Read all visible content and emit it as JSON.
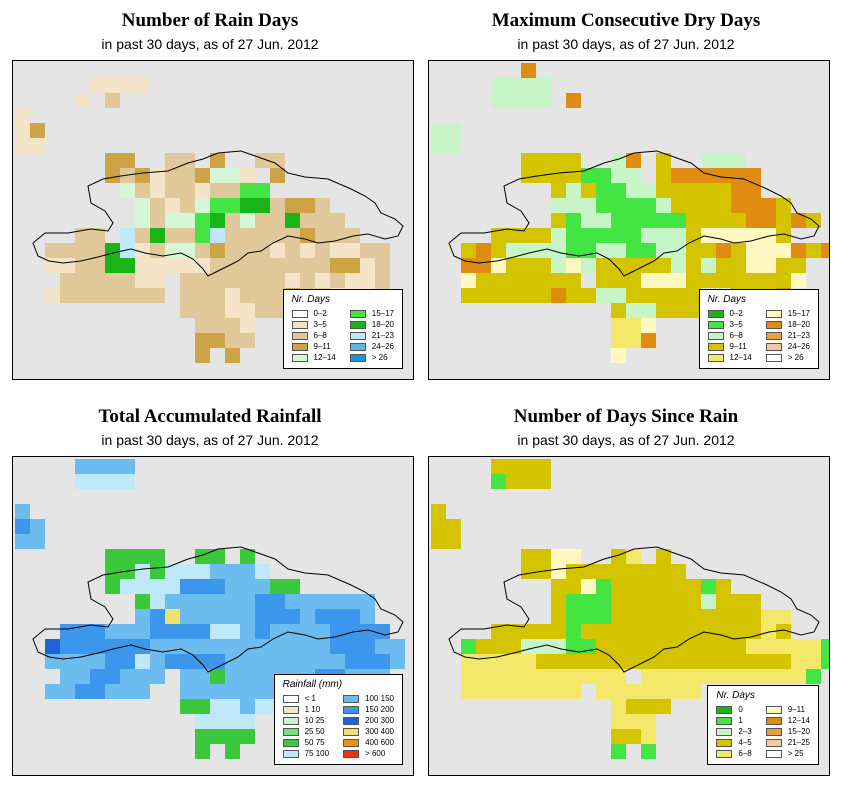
{
  "panels": [
    {
      "id": "rain-days",
      "title": "Number of Rain Days",
      "subtitle": "in past 30 days, as of  27 Jun. 2012",
      "legend_title": "Nr. Days",
      "legend": [
        {
          "label": "0–2",
          "color": "#ffffff"
        },
        {
          "label": "3–5",
          "color": "#f4e4c8"
        },
        {
          "label": "6–8",
          "color": "#e0c89a"
        },
        {
          "label": "9–11",
          "color": "#cca445"
        },
        {
          "label": "12–14",
          "color": "#d6f7d6"
        },
        {
          "label": "15–17",
          "color": "#44e444"
        },
        {
          "label": "18–20",
          "color": "#18b418"
        },
        {
          "label": "21–23",
          "color": "#bfe8f8"
        },
        {
          "label": "24–26",
          "color": "#5cb8ec"
        },
        {
          "label": "> 26",
          "color": "#1e90d8"
        }
      ],
      "grid": [
        "...........................",
        ".....1111..................",
        "....1.2....................",
        "1..........................",
        "13.........................",
        "11.........................",
        "......33..22.3..22.........",
        "......3231223441.3.........",
        ".......4212212255..........",
        "........4212455662332......",
        "........42445624226222.....",
        "....22.7262257222223222....",
        "..22226712442322212121122..",
        "..11226611111222222223312..",
        "...2222211.22222221212112..",
        "..12222222.22212223221112..",
        "...........2221122.........",
        "............2221...........",
        "............3322...........",
        "............3.3............",
        "..........................."
      ]
    },
    {
      "id": "max-dry-days",
      "title": "Maximum Consecutive Dry Days",
      "subtitle": "in past 30 days, as of  27 Jun. 2012",
      "legend_title": "Nr. Days",
      "legend": [
        {
          "label": "0–2",
          "color": "#18b418"
        },
        {
          "label": "3–5",
          "color": "#44e444"
        },
        {
          "label": "6–8",
          "color": "#c8f5c8"
        },
        {
          "label": "9–11",
          "color": "#d4c400"
        },
        {
          "label": "12–14",
          "color": "#f4e86a"
        },
        {
          "label": "15–17",
          "color": "#fff8c0"
        },
        {
          "label": "18–20",
          "color": "#e08c10"
        },
        {
          "label": "21–23",
          "color": "#e8a040"
        },
        {
          "label": "24–26",
          "color": "#f8c8a0"
        },
        {
          "label": "> 26",
          "color": "#ffffff"
        }
      ],
      "grid": [
        "......6....................",
        "....2222...................",
        "....2222.6.................",
        "...........................",
        "22.........................",
        "22.........................",
        "......3333..26.3..222......",
        "......33331122.3666666.....",
        "........32311223333366.....",
        "........2221111233336663...",
        "........312211111333366363..",
        "....33332111112223555553...",
        "..3632222112211223363555636..",
        "..66533325233333232335533..",
        "..53333333.33355533333335..",
        "..3333336332233333..3336...",
        "............3223333........",
        "............445............",
        "............446............",
        "............5..............",
        "..........................."
      ]
    },
    {
      "id": "total-rainfall",
      "title": "Total Accumulated Rainfall",
      "subtitle": "in past 30 days, as of  27 Jun. 2012",
      "legend_title": "Rainfall (mm)",
      "legend": [
        {
          "label": "< 1",
          "color": "#ffffff"
        },
        {
          "label": "1   10",
          "color": "#f4e4c8"
        },
        {
          "label": "10   25",
          "color": "#c8f5c8"
        },
        {
          "label": "25   50",
          "color": "#7ae07a"
        },
        {
          "label": "50   75",
          "color": "#3cc83c"
        },
        {
          "label": "75   100",
          "color": "#bfe8f8"
        },
        {
          "label": "100   150",
          "color": "#6cbcf0"
        },
        {
          "label": "150   200",
          "color": "#3c96ec"
        },
        {
          "label": "200   300",
          "color": "#1e64d8"
        },
        {
          "label": "300   400",
          "color": "#f0e070"
        },
        {
          "label": "400   600",
          "color": "#f09010"
        },
        {
          "label": "> 600",
          "color": "#f03010"
        }
      ],
      "grid": [
        "....6666...................",
        "....5555...................",
        "...........................",
        "6..........................",
        "76.........................",
        "66.........................",
        "......4444..44.4...........",
        "......44545556665..........",
        "......4555577766644........",
        "........4566666677666666...",
        "........6796666677767776....",
        "...7776667777556766667777..",
        "..877777766666666666677766..",
        "..666677567777666666667776.",
        "...6677666.66466666677666..",
        "..6677666..666666666666....",
        "...........4455655.........",
        "............5555...........",
        "............4444...........",
        "............4.4............",
        "..........................."
      ]
    },
    {
      "id": "days-since-rain",
      "title": "Number of Days Since Rain",
      "subtitle": "in past 30 days, as of  27 Jun. 2012",
      "legend_title": "Nr. Days",
      "legend": [
        {
          "label": "0",
          "color": "#18b418"
        },
        {
          "label": "1",
          "color": "#44e444"
        },
        {
          "label": "2–3",
          "color": "#c8f5c8"
        },
        {
          "label": "4–5",
          "color": "#d4c400"
        },
        {
          "label": "6–8",
          "color": "#f4e86a"
        },
        {
          "label": "9–11",
          "color": "#fff8c0"
        },
        {
          "label": "12–14",
          "color": "#e08c10"
        },
        {
          "label": "15–20",
          "color": "#e8a040"
        },
        {
          "label": "21–25",
          "color": "#f8c8a0"
        },
        {
          "label": "> 25",
          "color": "#ffffff"
        }
      ],
      "grid": [
        "....3333...................",
        "....1333...................",
        "...........................",
        "3..........................",
        "33.........................",
        "33.........................",
        "......3355..34.3...........",
        "......33533333333..........",
        "........335133333313.......",
        "........31113333332333.....",
        "........3111333333333344....",
        "....33333133333333333343...",
        "..1333222113333333333444441..",
        "..4444433333333333333333441.",
        "..44444444444.444444444441...",
        "..44444444.4444444..........",
        "............4333...........",
        "............444............",
        "............334............",
        "............1.1............",
        "..........................."
      ]
    }
  ]
}
